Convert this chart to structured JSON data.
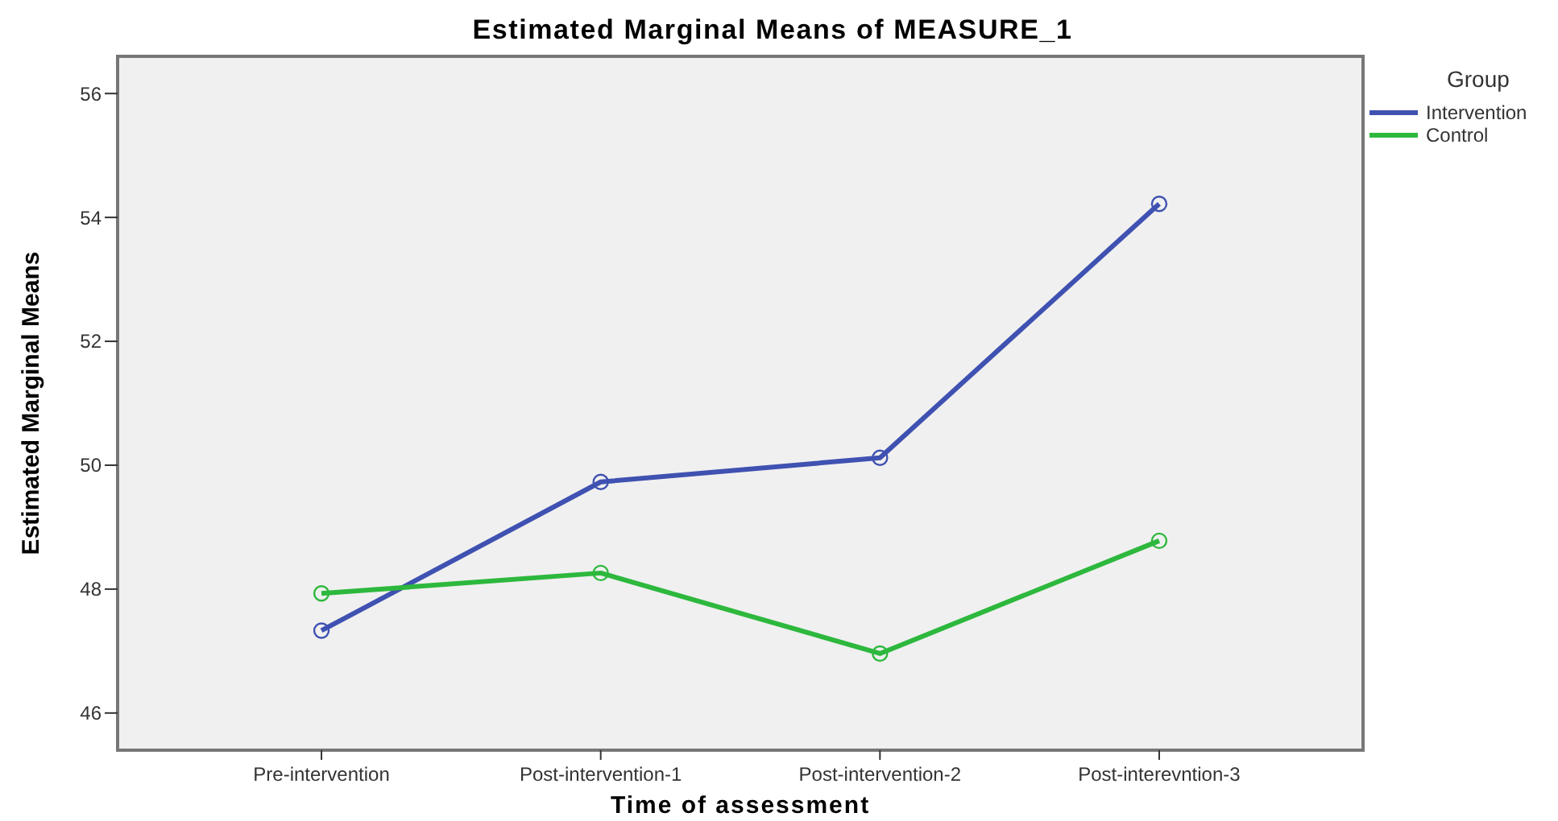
{
  "chart_data": {
    "type": "line",
    "title": "Estimated Marginal Means of MEASURE_1",
    "xlabel": "Time of assessment",
    "ylabel": "Estimated Marginal Means",
    "legend_title": "Group",
    "categories": [
      "Pre-intervention",
      "Post-intervention-1",
      "Post-intervention-2",
      "Post-interevntion-3"
    ],
    "series": [
      {
        "name": "Intervention",
        "color": "#3f51b1",
        "values": [
          47.33,
          49.73,
          50.12,
          54.22
        ]
      },
      {
        "name": "Control",
        "color": "#2db83d",
        "values": [
          47.93,
          48.26,
          46.96,
          48.78
        ]
      }
    ],
    "ylim": [
      45.4,
      56.6
    ],
    "yticks": [
      46,
      48,
      50,
      52,
      54,
      56
    ],
    "grid": false,
    "legend": "top right",
    "marker": "circle"
  }
}
